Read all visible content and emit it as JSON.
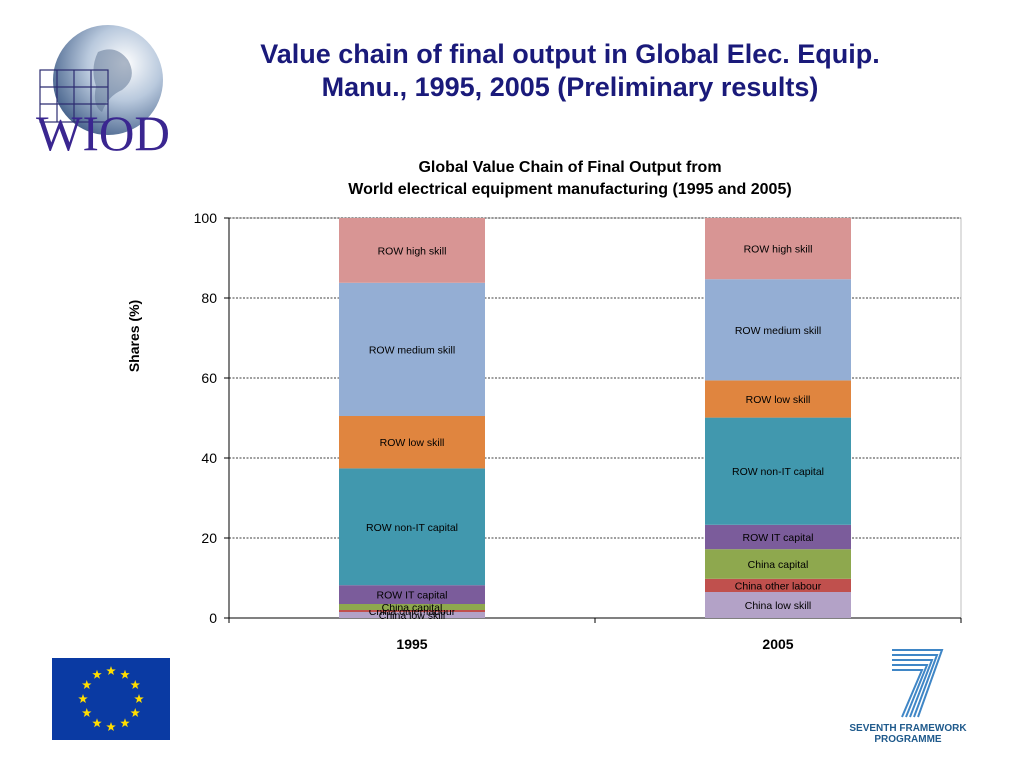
{
  "slide": {
    "title_line1": "Value chain of final output in Global Elec. Equip.",
    "title_line2": "Manu., 1995, 2005 (Preliminary results)"
  },
  "logos": {
    "wiod_text": "WIOD",
    "fp7_line1": "SEVENTH FRAMEWORK",
    "fp7_line2": "PROGRAMME"
  },
  "colors": {
    "title": "#1a1a7a",
    "China low skill": "#b3a2c7",
    "China other labour": "#c0504d",
    "China capital": "#8ea84e",
    "ROW IT capital": "#7b5c9b",
    "ROW non-IT capital": "#4198ae",
    "ROW low skill": "#e0853f",
    "ROW medium skill": "#94aed4",
    "ROW high skill": "#d89594"
  },
  "chart_data": {
    "type": "bar",
    "stacked": true,
    "title": "Global Value Chain of Final Output from",
    "subtitle": "World electrical equipment manufacturing (1995 and 2005)",
    "categories": [
      "1995",
      "2005"
    ],
    "xlabel": "",
    "ylabel": "Shares (%)",
    "ylim": [
      0,
      100
    ],
    "yticks": [
      0,
      20,
      40,
      60,
      80,
      100
    ],
    "grid": true,
    "series": [
      {
        "name": "China low skill",
        "values": [
          1.5,
          6.5
        ]
      },
      {
        "name": "China other labour",
        "values": [
          0.5,
          3.3
        ]
      },
      {
        "name": "China capital",
        "values": [
          1.5,
          7.4
        ]
      },
      {
        "name": "ROW IT capital",
        "values": [
          4.7,
          6.1
        ]
      },
      {
        "name": "ROW non-IT capital",
        "values": [
          29.2,
          26.8
        ]
      },
      {
        "name": "ROW low skill",
        "values": [
          13.1,
          9.3
        ]
      },
      {
        "name": "ROW medium skill",
        "values": [
          33.3,
          25.3
        ]
      },
      {
        "name": "ROW high skill",
        "values": [
          16.2,
          15.3
        ]
      }
    ]
  }
}
